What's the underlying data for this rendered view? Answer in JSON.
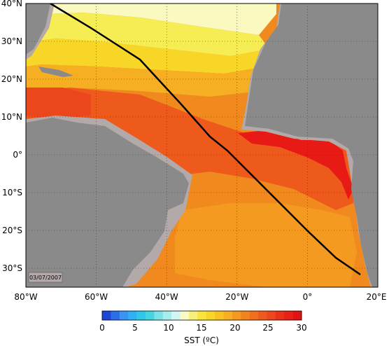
{
  "map": {
    "lon_range": [
      -80,
      20
    ],
    "lat_range": [
      -35,
      40
    ],
    "lon_tick_labels": [
      "80°W",
      "60°W",
      "40°W",
      "20°W",
      "0°",
      "20°E"
    ],
    "lat_tick_labels": [
      "40°N",
      "30°N",
      "20°N",
      "10°N",
      "0°",
      "10°S",
      "20°S",
      "30°S"
    ],
    "date": "03/07/2007",
    "track_line_color": "#000000",
    "land_color": "#8a8a8a",
    "shelf_color": "#b4a9a9"
  },
  "colorbar": {
    "tick_labels": [
      "0",
      "5",
      "10",
      "15",
      "20",
      "25",
      "30"
    ],
    "label": "SST (ºC)",
    "min": 0,
    "max": 30,
    "colors": [
      "#1e46d6",
      "#2a6ee8",
      "#3a94f4",
      "#2fb0f2",
      "#2ec8ea",
      "#42d6e0",
      "#7ae2e6",
      "#aaecec",
      "#d2f4f4",
      "#fafac8",
      "#f6f07a",
      "#f8e43a",
      "#f8d628",
      "#f8c224",
      "#f6ae22",
      "#f49a20",
      "#f2841e",
      "#f06e1c",
      "#ee5a1c",
      "#ec461c",
      "#ea321a",
      "#e82018",
      "#e41214"
    ]
  }
}
